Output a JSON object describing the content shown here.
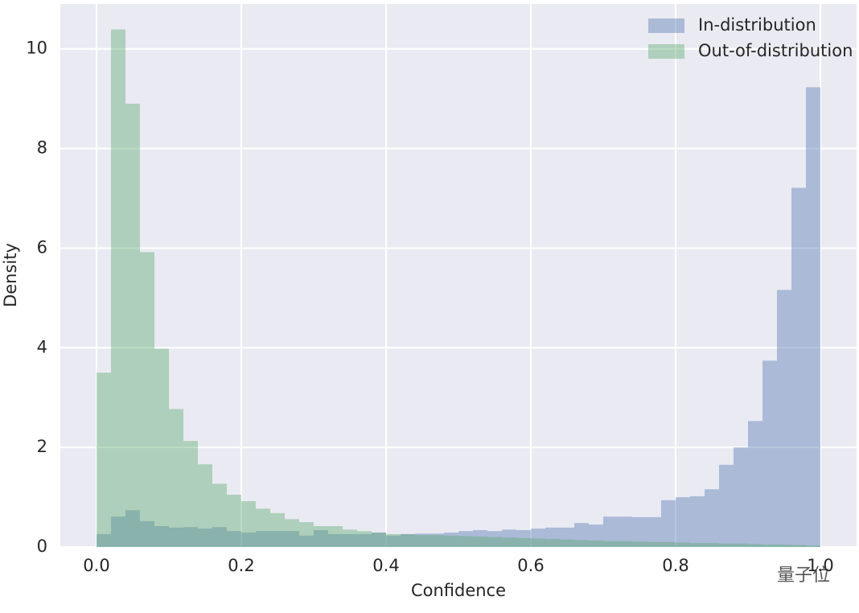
{
  "chart_data": {
    "type": "histogram",
    "xlabel": "Confidence",
    "ylabel": "Density",
    "bins": [
      0,
      0.02,
      0.04,
      0.06,
      0.08,
      0.1,
      0.12,
      0.14,
      0.16,
      0.18,
      0.2,
      0.22,
      0.24,
      0.26,
      0.28,
      0.3,
      0.32,
      0.34,
      0.36,
      0.38,
      0.4,
      0.42,
      0.44,
      0.46,
      0.48,
      0.5,
      0.52,
      0.54,
      0.56,
      0.58,
      0.6,
      0.62,
      0.64,
      0.66,
      0.68,
      0.7,
      0.72,
      0.74,
      0.76,
      0.78,
      0.8,
      0.82,
      0.84,
      0.86,
      0.88,
      0.9,
      0.92,
      0.94,
      0.96,
      0.98,
      1.0
    ],
    "series": [
      {
        "name": "In-distribution",
        "color": "#4c72b0",
        "values": [
          0.26,
          0.61,
          0.74,
          0.52,
          0.42,
          0.39,
          0.4,
          0.37,
          0.4,
          0.32,
          0.29,
          0.32,
          0.32,
          0.32,
          0.23,
          0.34,
          0.26,
          0.26,
          0.26,
          0.29,
          0.23,
          0.26,
          0.27,
          0.27,
          0.29,
          0.32,
          0.34,
          0.32,
          0.35,
          0.34,
          0.37,
          0.39,
          0.39,
          0.48,
          0.45,
          0.61,
          0.61,
          0.6,
          0.6,
          0.94,
          1.0,
          1.02,
          1.16,
          1.65,
          2.0,
          2.53,
          3.74,
          5.16,
          7.21,
          9.23
        ]
      },
      {
        "name": "Out-of-distribution",
        "color": "#55a868",
        "values": [
          3.5,
          10.39,
          8.9,
          5.92,
          3.98,
          2.77,
          2.13,
          1.66,
          1.27,
          1.05,
          0.92,
          0.77,
          0.68,
          0.56,
          0.5,
          0.42,
          0.42,
          0.35,
          0.32,
          0.29,
          0.26,
          0.26,
          0.24,
          0.24,
          0.23,
          0.22,
          0.21,
          0.2,
          0.19,
          0.18,
          0.17,
          0.16,
          0.15,
          0.14,
          0.13,
          0.12,
          0.12,
          0.11,
          0.1,
          0.1,
          0.09,
          0.08,
          0.08,
          0.07,
          0.07,
          0.06,
          0.05,
          0.05,
          0.04,
          0.03
        ]
      }
    ],
    "xlim": [
      -0.05,
      1.05
    ],
    "ylim": [
      0,
      10.9
    ],
    "xticks": [
      {
        "value": 0,
        "label": "0.0"
      },
      0.2,
      0.4,
      0.6,
      0.8,
      {
        "value": 1,
        "label": "1.0"
      }
    ],
    "yticks": [
      0,
      2,
      4,
      6,
      8,
      10
    ],
    "grid": true,
    "legend": "upper right",
    "opacity": 0.4,
    "watermark": "量子位"
  }
}
